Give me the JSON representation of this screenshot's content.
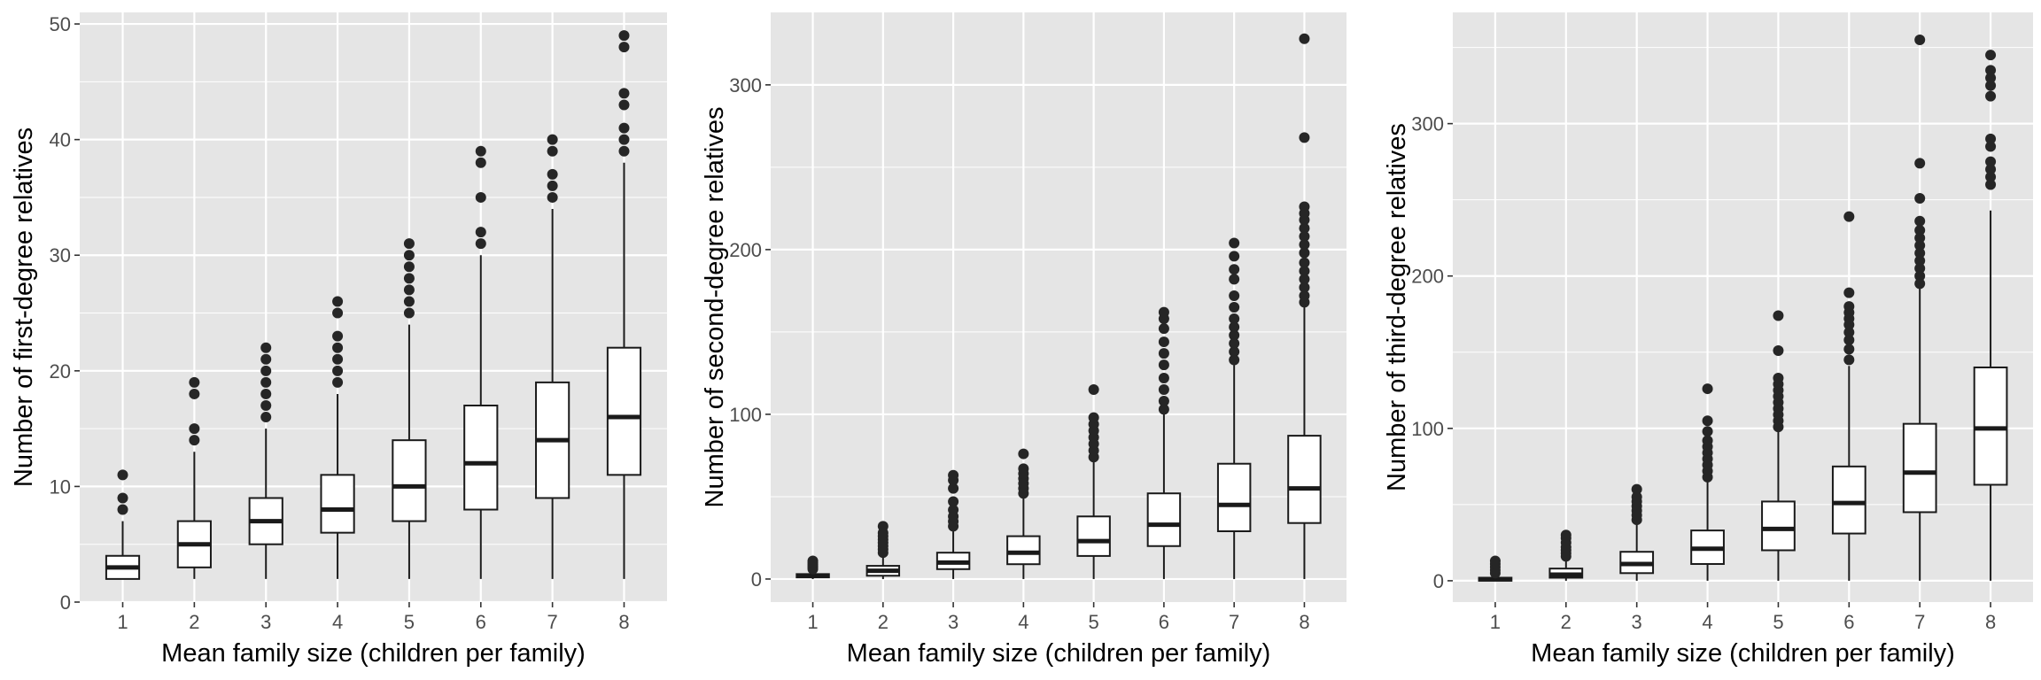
{
  "colors": {
    "panel_background": "#e5e5e5",
    "grid": "#ffffff",
    "box_fill": "#ffffff",
    "box_stroke": "#1a1a1a",
    "outlier": "#262626"
  },
  "chart_data": [
    {
      "type": "box",
      "xlabel": "Mean family size (children per family)",
      "ylabel": "Number of first-degree relatives",
      "categories": [
        "1",
        "2",
        "3",
        "4",
        "5",
        "6",
        "7",
        "8"
      ],
      "ylim": [
        0,
        51
      ],
      "yticks": [
        0,
        10,
        20,
        30,
        40,
        50
      ],
      "ytick_labels": [
        "0",
        "10",
        "20",
        "30",
        "40",
        "50"
      ],
      "grid": true,
      "boxes": [
        {
          "min": 2,
          "q1": 2,
          "median": 3,
          "q3": 4,
          "max": 7,
          "outliers": [
            8,
            9,
            11
          ]
        },
        {
          "min": 2,
          "q1": 3,
          "median": 5,
          "q3": 7,
          "max": 13,
          "outliers": [
            14,
            15,
            18,
            19
          ]
        },
        {
          "min": 2,
          "q1": 5,
          "median": 7,
          "q3": 9,
          "max": 15,
          "outliers": [
            16,
            17,
            18,
            19,
            20,
            21,
            22
          ]
        },
        {
          "min": 2,
          "q1": 6,
          "median": 8,
          "q3": 11,
          "max": 18,
          "outliers": [
            19,
            20,
            21,
            22,
            23,
            25,
            26
          ]
        },
        {
          "min": 2,
          "q1": 7,
          "median": 10,
          "q3": 14,
          "max": 24,
          "outliers": [
            25,
            26,
            27,
            28,
            29,
            30,
            31
          ]
        },
        {
          "min": 2,
          "q1": 8,
          "median": 12,
          "q3": 17,
          "max": 30,
          "outliers": [
            31,
            32,
            35,
            38,
            39
          ]
        },
        {
          "min": 2,
          "q1": 9,
          "median": 14,
          "q3": 19,
          "max": 34,
          "outliers": [
            35,
            36,
            37,
            39,
            40
          ]
        },
        {
          "min": 2,
          "q1": 11,
          "median": 16,
          "q3": 22,
          "max": 38,
          "outliers": [
            39,
            40,
            41,
            43,
            44,
            48,
            49
          ]
        }
      ]
    },
    {
      "type": "box",
      "xlabel": "Mean family size (children per family)",
      "ylabel": "Number of second-degree relatives",
      "categories": [
        "1",
        "2",
        "3",
        "4",
        "5",
        "6",
        "7",
        "8"
      ],
      "ylim": [
        -14,
        344
      ],
      "yticks": [
        0,
        100,
        200,
        300
      ],
      "ytick_labels": [
        "0",
        "100",
        "200",
        "300"
      ],
      "grid": true,
      "boxes": [
        {
          "min": 0,
          "q1": 1,
          "median": 2,
          "q3": 3,
          "max": 5,
          "outliers": [
            6,
            7,
            8,
            9,
            10,
            11
          ]
        },
        {
          "min": 0,
          "q1": 2,
          "median": 5,
          "q3": 8,
          "max": 15,
          "outliers": [
            16,
            18,
            20,
            22,
            24,
            26,
            28,
            32
          ]
        },
        {
          "min": 0,
          "q1": 6,
          "median": 10,
          "q3": 16,
          "max": 30,
          "outliers": [
            32,
            35,
            38,
            42,
            47,
            55,
            60,
            63
          ]
        },
        {
          "min": 0,
          "q1": 9,
          "median": 16,
          "q3": 26,
          "max": 50,
          "outliers": [
            52,
            55,
            58,
            61,
            64,
            67,
            76
          ]
        },
        {
          "min": 0,
          "q1": 14,
          "median": 23,
          "q3": 38,
          "max": 72,
          "outliers": [
            74,
            78,
            82,
            86,
            90,
            94,
            98,
            115
          ]
        },
        {
          "min": 0,
          "q1": 20,
          "median": 33,
          "q3": 52,
          "max": 100,
          "outliers": [
            103,
            108,
            115,
            122,
            130,
            137,
            144,
            152,
            158,
            162
          ]
        },
        {
          "min": 0,
          "q1": 29,
          "median": 45,
          "q3": 70,
          "max": 130,
          "outliers": [
            133,
            138,
            143,
            148,
            153,
            158,
            165,
            172,
            182,
            188,
            196,
            204
          ]
        },
        {
          "min": 0,
          "q1": 34,
          "median": 55,
          "q3": 87,
          "max": 165,
          "outliers": [
            168,
            172,
            177,
            182,
            187,
            192,
            198,
            203,
            208,
            213,
            218,
            222,
            226,
            268,
            328
          ]
        }
      ]
    },
    {
      "type": "box",
      "xlabel": "Mean family size (children per family)",
      "ylabel": "Number of third-degree relatives",
      "categories": [
        "1",
        "2",
        "3",
        "4",
        "5",
        "6",
        "7",
        "8"
      ],
      "ylim": [
        -14,
        373
      ],
      "yticks": [
        0,
        100,
        200,
        300
      ],
      "ytick_labels": [
        "0",
        "100",
        "200",
        "300"
      ],
      "grid": true,
      "boxes": [
        {
          "min": 0,
          "q1": 0,
          "median": 1,
          "q3": 2,
          "max": 4,
          "outliers": [
            5,
            7,
            9,
            11,
            13
          ]
        },
        {
          "min": 0,
          "q1": 2,
          "median": 4,
          "q3": 8,
          "max": 15,
          "outliers": [
            16,
            18,
            20,
            22,
            25,
            28,
            30
          ]
        },
        {
          "min": 0,
          "q1": 5,
          "median": 11,
          "q3": 19,
          "max": 38,
          "outliers": [
            40,
            43,
            46,
            49,
            52,
            55,
            60
          ]
        },
        {
          "min": 0,
          "q1": 11,
          "median": 21,
          "q3": 33,
          "max": 65,
          "outliers": [
            68,
            72,
            76,
            80,
            84,
            88,
            92,
            98,
            105,
            126
          ]
        },
        {
          "min": 0,
          "q1": 20,
          "median": 34,
          "q3": 52,
          "max": 98,
          "outliers": [
            101,
            105,
            109,
            113,
            117,
            121,
            125,
            129,
            133,
            151,
            174
          ]
        },
        {
          "min": 0,
          "q1": 31,
          "median": 51,
          "q3": 75,
          "max": 141,
          "outliers": [
            145,
            152,
            158,
            163,
            168,
            172,
            176,
            180,
            189,
            239
          ]
        },
        {
          "min": 0,
          "q1": 45,
          "median": 71,
          "q3": 103,
          "max": 192,
          "outliers": [
            195,
            200,
            205,
            210,
            215,
            220,
            225,
            230,
            236,
            251,
            274,
            355
          ]
        },
        {
          "min": 0,
          "q1": 63,
          "median": 100,
          "q3": 140,
          "max": 243,
          "outliers": [
            260,
            265,
            270,
            275,
            285,
            290,
            318,
            325,
            330,
            335,
            345
          ]
        }
      ]
    }
  ]
}
